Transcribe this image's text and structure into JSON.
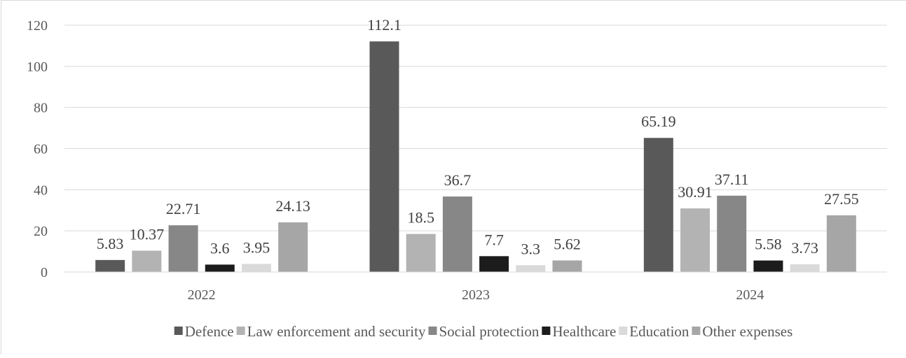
{
  "chart_data": {
    "type": "bar",
    "title": "",
    "xlabel": "",
    "ylabel": "",
    "ylim": [
      0,
      120
    ],
    "yticks": [
      "0",
      "20",
      "40",
      "60",
      "80",
      "100",
      "120"
    ],
    "grid": true,
    "legend_position": "bottom",
    "categories": [
      "2022",
      "2023",
      "2024"
    ],
    "series": [
      {
        "name": "Defence",
        "color": "#595959",
        "values": [
          5.83,
          112.1,
          65.19
        ],
        "labels": [
          "5.83",
          "112.1",
          "65.19"
        ]
      },
      {
        "name": "Law enforcement and security",
        "color": "#b3b3b3",
        "values": [
          10.37,
          18.5,
          30.91
        ],
        "labels": [
          "10.37",
          "18.5",
          "30.91"
        ]
      },
      {
        "name": "Social protection",
        "color": "#878787",
        "values": [
          22.71,
          36.7,
          37.11
        ],
        "labels": [
          "22.71",
          "36.7",
          "37.11"
        ]
      },
      {
        "name": "Healthcare",
        "color": "#1c1c1c",
        "values": [
          3.6,
          7.7,
          5.58
        ],
        "labels": [
          "3.6",
          "7.7",
          "5.58"
        ]
      },
      {
        "name": "Education",
        "color": "#dadada",
        "values": [
          3.95,
          3.3,
          3.73
        ],
        "labels": [
          "3.95",
          "3.3",
          "3.73"
        ]
      },
      {
        "name": "Other expenses",
        "color": "#a6a6a6",
        "values": [
          24.13,
          5.62,
          27.55
        ],
        "labels": [
          "24.13",
          "5.62",
          "27.55"
        ]
      }
    ]
  }
}
